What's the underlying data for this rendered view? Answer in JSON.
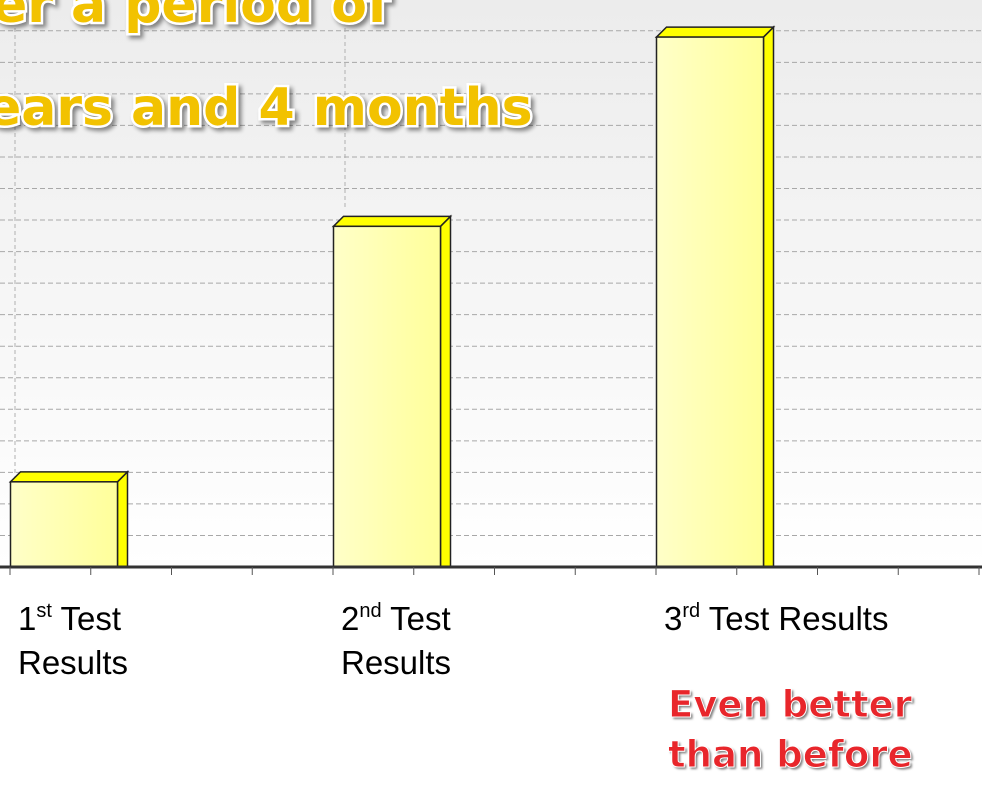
{
  "chart_data": {
    "type": "bar",
    "title": [
      "er a period of",
      "ears and 4 months"
    ],
    "categories": [
      "1st Test Results",
      "2nd Test Results",
      "3rd Test Results"
    ],
    "values": [
      2.7,
      10.8,
      16.8
    ],
    "color": "#ffffb4",
    "ylim": [
      0,
      17.5
    ],
    "yticks": [
      0,
      1,
      2,
      3,
      4,
      5,
      6,
      7,
      8,
      9,
      10,
      11,
      12,
      13,
      14,
      15,
      16,
      17
    ],
    "grid": true,
    "annotation": "Even better than before"
  }
}
